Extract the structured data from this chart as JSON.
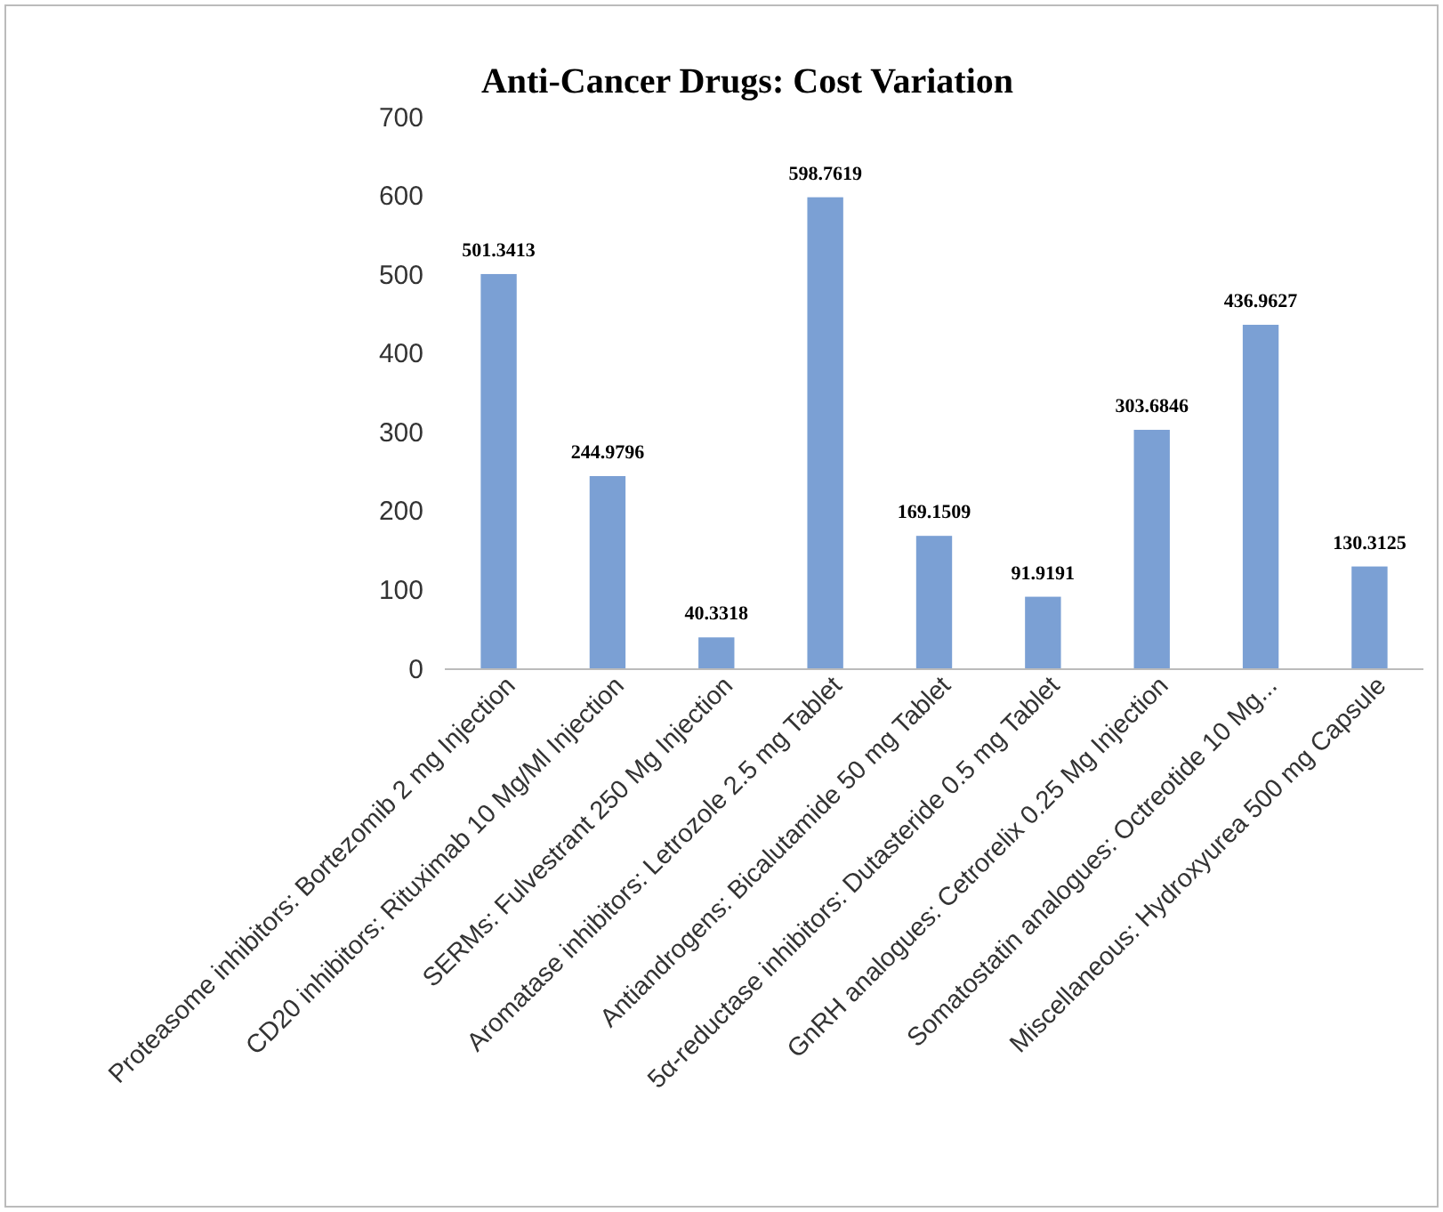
{
  "chart_data": {
    "type": "bar",
    "title": "Anti-Cancer Drugs: Cost Variation",
    "categories": [
      "Proteasome inhibitors: Bortezomib 2 mg Injection",
      "CD20 inhibitors: Rituximab 10 Mg/Ml Injection",
      "SERMs: Fulvestrant 250 Mg Injection",
      "Aromatase inhibitors: Letrozole 2.5 mg Tablet",
      "Antiandrogens: Bicalutamide 50 mg Tablet",
      "5α-reductase inhibitors: Dutasteride 0.5 mg Tablet",
      "GnRH analogues: Cetrorelix 0.25 Mg Injection",
      "Somatostatin analogues: Octreotide 10 Mg...",
      "Miscellaneous: Hydroxyurea 500 mg Capsule"
    ],
    "values": [
      501.3413,
      244.9796,
      40.3318,
      598.7619,
      169.1509,
      91.9191,
      303.6846,
      436.9627,
      130.3125
    ],
    "color": "#7ba0d4",
    "ylim": [
      0,
      700
    ],
    "yticks": [
      0,
      100,
      200,
      300,
      400,
      500,
      600,
      700
    ],
    "data_labels": true,
    "grid": false
  }
}
